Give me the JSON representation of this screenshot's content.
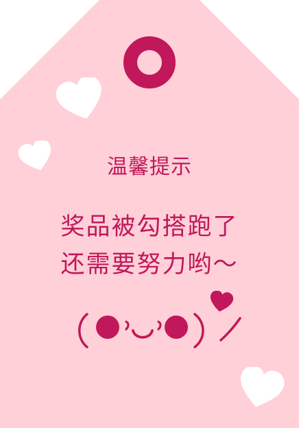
{
  "card": {
    "title": "温馨提示",
    "message_lines": [
      "奖品被勾搭跑了",
      "还需要努力哟～"
    ]
  },
  "colors": {
    "background": "#ffffff",
    "tag": "#ffd0d8",
    "accent": "#c0185a",
    "heart": "#ffffff"
  },
  "decor": {
    "icons": [
      "tag-hole-icon",
      "heart-icon",
      "kaomoji-face-icon"
    ]
  }
}
